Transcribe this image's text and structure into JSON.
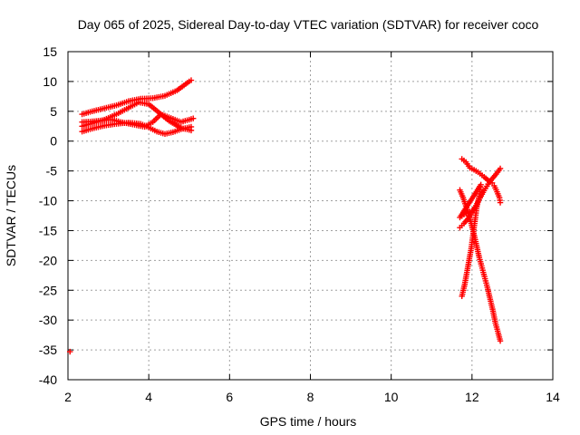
{
  "chart_data": {
    "type": "scatter",
    "title": "Day 065 of 2025, Sidereal Day-to-day VTEC variation (SDTVAR) for receiver coco",
    "xlabel": "GPS time / hours",
    "ylabel": "SDTVAR / TECUs",
    "xlim": [
      2,
      14
    ],
    "ylim": [
      -40,
      15
    ],
    "xticks": [
      2,
      4,
      6,
      8,
      10,
      12,
      14
    ],
    "yticks": [
      15,
      10,
      5,
      0,
      -5,
      -10,
      -15,
      -20,
      -25,
      -30,
      -35,
      -40
    ],
    "grid": true,
    "marker": "+",
    "color": "#ff0000",
    "series": [
      {
        "points": [
          [
            2.05,
            -35.3
          ],
          [
            2.35,
            4.5
          ],
          [
            2.6,
            5.0
          ],
          [
            2.9,
            5.5
          ],
          [
            3.2,
            6.0
          ],
          [
            3.5,
            6.7
          ],
          [
            3.8,
            7.1
          ],
          [
            4.1,
            7.2
          ],
          [
            4.4,
            7.6
          ],
          [
            4.7,
            8.5
          ],
          [
            5.0,
            10.0
          ],
          [
            5.05,
            10.2
          ],
          [
            2.35,
            2.5
          ],
          [
            2.6,
            3.0
          ],
          [
            2.9,
            3.6
          ],
          [
            3.2,
            4.5
          ],
          [
            3.5,
            5.6
          ],
          [
            3.75,
            6.5
          ],
          [
            4.0,
            6.2
          ],
          [
            4.25,
            4.8
          ],
          [
            4.5,
            3.4
          ],
          [
            4.8,
            2.2
          ],
          [
            5.05,
            1.8
          ],
          [
            2.35,
            1.6
          ],
          [
            2.6,
            2.1
          ],
          [
            2.9,
            2.6
          ],
          [
            3.2,
            2.9
          ],
          [
            3.5,
            3.1
          ],
          [
            3.8,
            2.9
          ],
          [
            4.0,
            2.3
          ],
          [
            4.2,
            1.6
          ],
          [
            4.4,
            1.2
          ],
          [
            4.6,
            1.5
          ],
          [
            4.8,
            2.0
          ],
          [
            5.05,
            2.4
          ],
          [
            2.35,
            3.2
          ],
          [
            2.6,
            3.3
          ],
          [
            2.9,
            3.5
          ],
          [
            3.1,
            3.6
          ],
          [
            3.3,
            3.2
          ],
          [
            3.6,
            2.8
          ],
          [
            3.9,
            2.4
          ],
          [
            4.1,
            3.2
          ],
          [
            4.3,
            4.5
          ],
          [
            4.5,
            4.0
          ],
          [
            4.8,
            3.2
          ],
          [
            5.1,
            3.8
          ]
        ]
      },
      {
        "points": [
          [
            11.75,
            -3.0
          ],
          [
            11.85,
            -3.5
          ],
          [
            11.95,
            -4.5
          ],
          [
            12.05,
            -4.8
          ],
          [
            12.15,
            -5.2
          ],
          [
            12.3,
            -6.0
          ],
          [
            12.42,
            -6.7
          ],
          [
            12.5,
            -7.0
          ],
          [
            12.55,
            -7.5
          ],
          [
            12.62,
            -8.5
          ],
          [
            12.68,
            -9.5
          ],
          [
            12.7,
            -10.3
          ],
          [
            11.7,
            -14.5
          ],
          [
            11.8,
            -13.8
          ],
          [
            11.9,
            -13.0
          ],
          [
            12.0,
            -12.0
          ],
          [
            12.1,
            -10.8
          ],
          [
            12.2,
            -9.5
          ],
          [
            12.3,
            -8.3
          ],
          [
            12.4,
            -7.2
          ],
          [
            12.5,
            -6.3
          ],
          [
            12.6,
            -5.5
          ],
          [
            12.7,
            -4.6
          ],
          [
            11.7,
            -8.2
          ],
          [
            11.78,
            -9.5
          ],
          [
            11.88,
            -11.5
          ],
          [
            11.98,
            -13.8
          ],
          [
            12.08,
            -16.5
          ],
          [
            12.18,
            -19.5
          ],
          [
            12.28,
            -22.0
          ],
          [
            12.38,
            -24.5
          ],
          [
            12.45,
            -26.5
          ],
          [
            12.52,
            -28.5
          ],
          [
            12.58,
            -30.5
          ],
          [
            12.65,
            -32.2
          ],
          [
            12.7,
            -33.5
          ],
          [
            11.75,
            -26.0
          ],
          [
            11.82,
            -24.0
          ],
          [
            11.9,
            -21.0
          ],
          [
            11.98,
            -18.0
          ],
          [
            12.05,
            -14.5
          ],
          [
            12.12,
            -11.0
          ],
          [
            12.2,
            -8.5
          ],
          [
            12.22,
            -7.3
          ],
          [
            11.7,
            -12.8
          ],
          [
            11.8,
            -12.3
          ],
          [
            11.9,
            -12.0
          ],
          [
            12.05,
            -11.5
          ]
        ]
      }
    ]
  }
}
